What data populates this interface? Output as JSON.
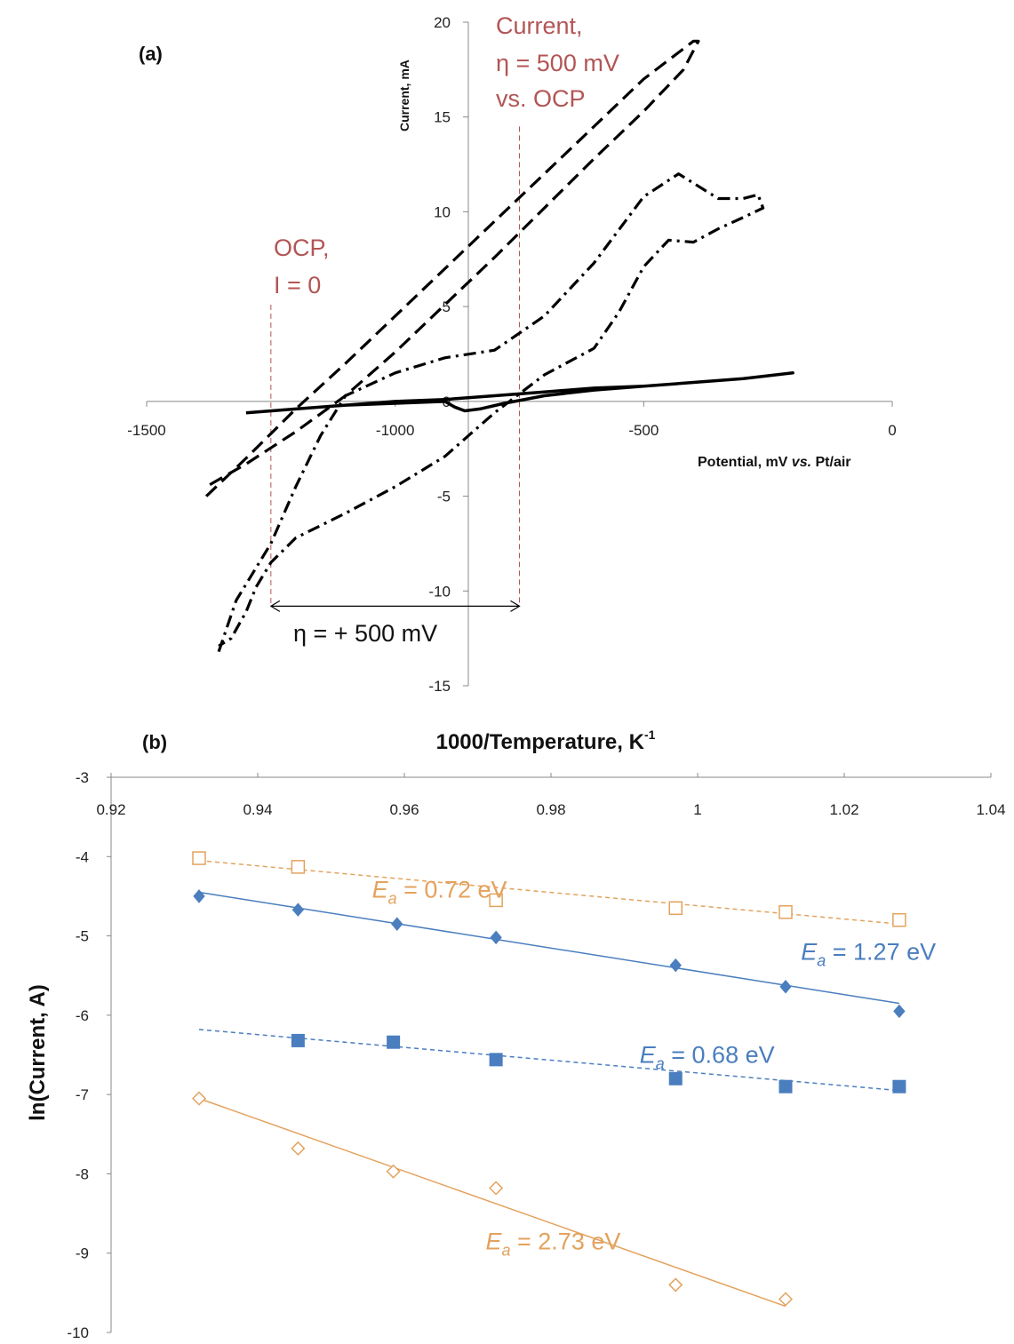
{
  "chart_data": [
    {
      "panel_label": "(a)",
      "type": "line",
      "xlabel": "Potential, mV vs. Pt/air",
      "xlabel_parts": [
        "Potential, mV ",
        "vs.",
        " Pt/air"
      ],
      "ylabel": "Current, mA",
      "xlim": [
        -1500,
        0
      ],
      "ylim": [
        -15,
        20
      ],
      "x_ticks": [
        -1500,
        -1000,
        -500,
        0
      ],
      "y_ticks": [
        -15,
        -10,
        -5,
        0,
        5,
        10,
        15,
        20
      ],
      "grid": false,
      "legend": "none",
      "series": [
        {
          "style": "dashed",
          "x": [
            -1380,
            -1300,
            -1200,
            -1100,
            -1000,
            -900,
            -800,
            -700,
            -600,
            -500,
            -400,
            -390,
            -420,
            -500,
            -600,
            -700,
            -800,
            -900,
            -1000,
            -1100,
            -1200,
            -1300,
            -1380
          ],
          "y": [
            -5,
            -3,
            -0.4,
            2,
            4.5,
            7,
            9.5,
            12,
            14.5,
            17,
            19,
            19,
            17.5,
            15.3,
            12.8,
            10.2,
            7.6,
            5.1,
            2.6,
            0.3,
            -1.6,
            -3.3,
            -4.5
          ]
        },
        {
          "style": "dash-dot",
          "x": [
            -1355,
            -1320,
            -1250,
            -1200,
            -1150,
            -1100,
            -1000,
            -900,
            -800,
            -700,
            -600,
            -500,
            -430,
            -350,
            -300,
            -270,
            -260,
            -300,
            -350,
            -400,
            -450,
            -500,
            -550,
            -600,
            -700,
            -800,
            -900,
            -1000,
            -1100,
            -1200,
            -1250,
            -1280,
            -1300,
            -1330,
            -1355
          ],
          "y": [
            -13.2,
            -10.5,
            -7.5,
            -4.5,
            -1.8,
            0.3,
            1.5,
            2.3,
            2.7,
            4.5,
            7.3,
            10.8,
            12.0,
            10.7,
            10.7,
            10.9,
            10.2,
            9.7,
            9.1,
            8.4,
            8.5,
            7.1,
            4.7,
            2.8,
            1.4,
            -0.6,
            -2.9,
            -4.5,
            -5.9,
            -7.2,
            -8.5,
            -9.8,
            -11.1,
            -12.5,
            -12.9
          ]
        },
        {
          "style": "solid",
          "x": [
            -1300,
            -1200,
            -1100,
            -1000,
            -900,
            -880,
            -860,
            -830,
            -780,
            -700,
            -600,
            -500,
            -400,
            -300,
            -200,
            -300,
            -400,
            -500,
            -600,
            -700,
            -800,
            -900,
            -1000,
            -1100,
            -1200,
            -1300
          ],
          "y": [
            -0.6,
            -0.4,
            -0.2,
            -0.1,
            0,
            -0.3,
            -0.5,
            -0.4,
            -0.1,
            0.3,
            0.6,
            0.8,
            1.0,
            1.2,
            1.5,
            1.2,
            1.0,
            0.8,
            0.7,
            0.5,
            0.3,
            0.1,
            0,
            -0.2,
            -0.4,
            -0.6
          ]
        }
      ],
      "annotations": {
        "ocp_x": -1250,
        "eta_x": -750,
        "eta_arrow_y": -10.8,
        "current_label": [
          "Current,",
          "η = 500 mV",
          "vs. OCP"
        ],
        "ocp_label": [
          "OCP,",
          "I = 0"
        ],
        "eta_label": "η = + 500 mV"
      },
      "colors": {
        "annotation": "#b35555",
        "curves": "#000000"
      }
    },
    {
      "panel_label": "(b)",
      "type": "scatter",
      "title": "1000/Temperature, K-1",
      "title_parts": [
        "1000/Temperature, K",
        "-1"
      ],
      "ylabel": "ln(Current, A)",
      "xlim": [
        0.92,
        1.04
      ],
      "ylim": [
        -10,
        -3
      ],
      "x_ticks": [
        "0.92",
        "0.94",
        "0.96",
        "0.98",
        "1",
        "1.02",
        "1.04"
      ],
      "y_ticks": [
        "-3",
        "-4",
        "-5",
        "-6",
        "-7",
        "-8",
        "-9",
        "-10"
      ],
      "x_axis_position": "top",
      "grid": false,
      "legend": "none",
      "series": [
        {
          "marker": "open-square",
          "color": "#e3a25d",
          "fit": "dashed",
          "x": [
            0.932,
            0.9455,
            0.9725,
            0.997,
            1.012,
            1.0275
          ],
          "y": [
            -4.02,
            -4.13,
            -4.55,
            -4.65,
            -4.7,
            -4.8
          ],
          "fit_line": [
            [
              0.932,
              -4.05
            ],
            [
              1.0275,
              -4.85
            ]
          ],
          "annotation": "Ea = 0.72 eV",
          "label_a": [
            0.974,
            -4.52
          ]
        },
        {
          "marker": "filled-diamond",
          "color": "#4a7ebf",
          "fit": "solid",
          "x": [
            0.932,
            0.9455,
            0.959,
            0.9725,
            0.997,
            1.012,
            1.0275
          ],
          "y": [
            -4.5,
            -4.67,
            -4.85,
            -5.02,
            -5.37,
            -5.64,
            -5.95
          ],
          "fit_line": [
            [
              0.932,
              -4.45
            ],
            [
              1.0275,
              -5.85
            ]
          ],
          "annotation": "Ea = 1.27 eV",
          "label_a": [
            1.0325,
            -5.3
          ]
        },
        {
          "marker": "filled-square",
          "color": "#4a7ebf",
          "fit": "dashed",
          "x": [
            0.9455,
            0.9585,
            0.9725,
            0.997,
            1.012,
            1.0275
          ],
          "y": [
            -6.32,
            -6.34,
            -6.56,
            -6.8,
            -6.9,
            -6.9
          ],
          "fit_line": [
            [
              0.932,
              -6.18
            ],
            [
              1.0275,
              -6.95
            ]
          ],
          "annotation": "Ea = 0.68 eV",
          "label_a": [
            1.0105,
            -6.6
          ]
        },
        {
          "marker": "open-diamond",
          "color": "#e3a25d",
          "fit": "solid",
          "x": [
            0.932,
            0.9455,
            0.9585,
            0.9725,
            0.997,
            1.012
          ],
          "y": [
            -7.05,
            -7.68,
            -7.97,
            -8.18,
            -9.4,
            -9.58
          ],
          "fit_line": [
            [
              0.932,
              -7.05
            ],
            [
              1.012,
              -9.67
            ]
          ],
          "annotation": "Ea = 2.73 eV",
          "label_a": [
            0.9895,
            -8.95
          ]
        }
      ]
    }
  ]
}
